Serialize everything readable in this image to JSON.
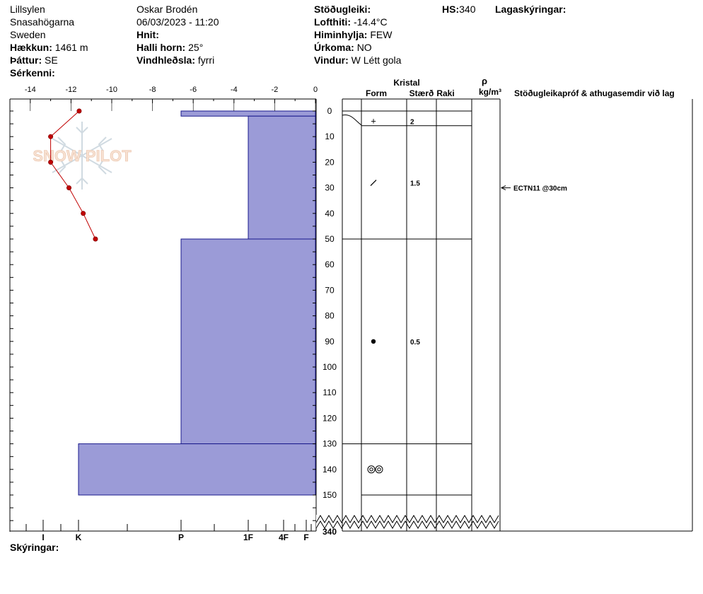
{
  "header": {
    "col1": {
      "location": "Lillsylen",
      "area": "Snasahögarna",
      "country": "Sweden",
      "elevation_label": "Hækkun:",
      "elevation": "1461 m",
      "aspect_label": "Þáttur:",
      "aspect": "SE",
      "features_label": "Sérkenni:"
    },
    "col2": {
      "observer": "Oskar Brodén",
      "datetime": "06/03/2023 - 11:20",
      "coords_label": "Hnit:",
      "slope_label": "Halli horn:",
      "slope": "25°",
      "wind_loading_label": "Vindhleðsla:",
      "wind_loading": "fyrri"
    },
    "col3": {
      "stability_label": "Stöðugleiki:",
      "air_temp_label": "Lofthiti:",
      "air_temp": "-14.4°C",
      "sky_label": "Himinhylja:",
      "sky": "FEW",
      "precip_label": "Úrkoma:",
      "precip": "NO",
      "wind_label": "Vindur:",
      "wind": "W Létt gola"
    },
    "hs_label": "HS:",
    "hs_value": "340",
    "layer_notes_label": "Lagaskýringar:"
  },
  "watermark": "SNOW PILOT",
  "footer": {
    "notes_label": "Skýringar:"
  },
  "columns": {
    "crystal": "Kristal",
    "form": "Form",
    "size": "Stærð",
    "moisture": "Raki",
    "rho": "ρ",
    "density_unit": "kg/m³",
    "stability_comments": "Stöðugleikapróf & athugasemdir við lag"
  },
  "chart_data": {
    "type": "snow_profile",
    "temperature_axis": {
      "ticks": [
        -14,
        -12,
        -10,
        -8,
        -6,
        -4,
        -2,
        0
      ],
      "range": [
        -15,
        0
      ]
    },
    "depth_axis": {
      "ticks": [
        0,
        10,
        20,
        30,
        40,
        50,
        60,
        70,
        80,
        90,
        100,
        110,
        120,
        130,
        140,
        150
      ],
      "range": [
        0,
        150
      ],
      "total_label": "340"
    },
    "hardness_axis": {
      "labels": [
        "I",
        "K",
        "P",
        "1F",
        "4F",
        "F"
      ]
    },
    "temperature_profile": [
      {
        "depth": 0,
        "temp": -11.6
      },
      {
        "depth": 10,
        "temp": -13.0
      },
      {
        "depth": 20,
        "temp": -13.0
      },
      {
        "depth": 30,
        "temp": -12.1
      },
      {
        "depth": 40,
        "temp": -11.4
      },
      {
        "depth": 50,
        "temp": -10.8
      }
    ],
    "layers": [
      {
        "top": 0,
        "bottom": 2,
        "hardness": "P"
      },
      {
        "top": 2,
        "bottom": 50,
        "hardness": "1F"
      },
      {
        "top": 50,
        "bottom": 130,
        "hardness": "P"
      },
      {
        "top": 130,
        "bottom": 150,
        "hardness": "K"
      }
    ],
    "grain_rows": [
      {
        "top": 0,
        "bottom": 2,
        "form": "",
        "size": ""
      },
      {
        "top": 2,
        "bottom": 6,
        "form": "+",
        "size": "2"
      },
      {
        "top": 6,
        "bottom": 50,
        "form": "/",
        "size": "1.5"
      },
      {
        "top": 50,
        "bottom": 130,
        "form": "●",
        "size": "0.5"
      },
      {
        "top": 130,
        "bottom": 150,
        "form": "◎◎",
        "size": ""
      }
    ],
    "stability_tests": [
      {
        "depth": 30,
        "text": "ECTN11 @30cm"
      }
    ],
    "layer_fill_color": "#9b9bd7",
    "temp_color": "#c00000"
  }
}
